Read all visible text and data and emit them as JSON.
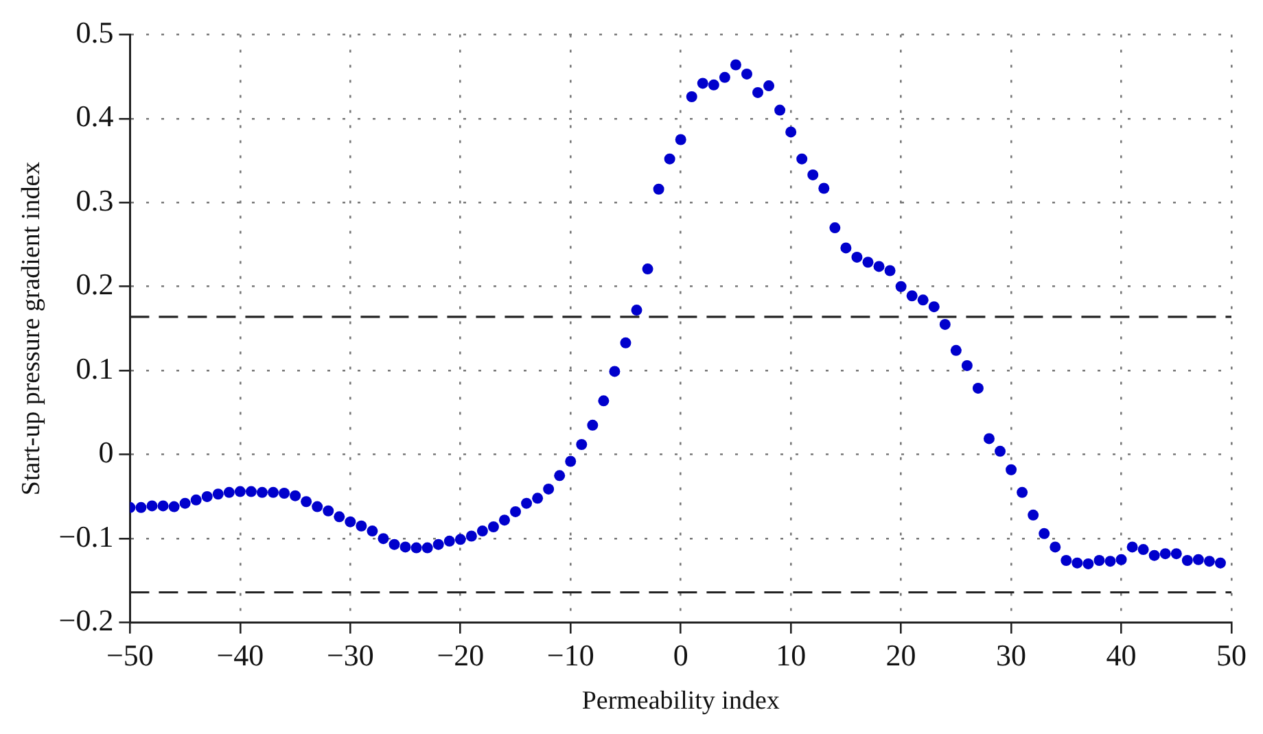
{
  "chart_data": {
    "type": "scatter",
    "xlabel": "Permeability index",
    "ylabel": "Start-up pressure gradient index",
    "x": [
      -50,
      -49,
      -48,
      -47,
      -46,
      -45,
      -44,
      -43,
      -42,
      -41,
      -40,
      -39,
      -38,
      -37,
      -36,
      -35,
      -34,
      -33,
      -32,
      -31,
      -30,
      -29,
      -28,
      -27,
      -26,
      -25,
      -24,
      -23,
      -22,
      -21,
      -20,
      -19,
      -18,
      -17,
      -16,
      -15,
      -14,
      -13,
      -12,
      -11,
      -10,
      -9,
      -8,
      -7,
      -6,
      -5,
      -4,
      -3,
      -2,
      -1,
      0,
      1,
      2,
      3,
      4,
      5,
      6,
      7,
      8,
      9,
      10,
      11,
      12,
      13,
      14,
      15,
      16,
      17,
      18,
      19,
      20,
      21,
      22,
      23,
      24,
      25,
      26,
      27,
      28,
      29,
      30,
      31,
      32,
      33,
      34,
      35,
      36,
      37,
      38,
      39,
      40,
      41,
      42,
      43,
      44,
      45,
      46,
      47,
      48,
      49
    ],
    "series": [
      {
        "color": "#0000cc",
        "values": [
          -0.063,
          -0.063,
          -0.061,
          -0.061,
          -0.062,
          -0.058,
          -0.054,
          -0.05,
          -0.047,
          -0.045,
          -0.044,
          -0.044,
          -0.045,
          -0.045,
          -0.046,
          -0.049,
          -0.056,
          -0.062,
          -0.067,
          -0.074,
          -0.08,
          -0.085,
          -0.091,
          -0.1,
          -0.107,
          -0.11,
          -0.111,
          -0.111,
          -0.107,
          -0.103,
          -0.101,
          -0.097,
          -0.091,
          -0.086,
          -0.078,
          -0.068,
          -0.058,
          -0.052,
          -0.041,
          -0.025,
          -0.008,
          0.012,
          0.035,
          0.064,
          0.099,
          0.133,
          0.172,
          0.221,
          0.316,
          0.352,
          0.375,
          0.426,
          0.442,
          0.44,
          0.449,
          0.464,
          0.453,
          0.431,
          0.439,
          0.41,
          0.384,
          0.352,
          0.333,
          0.317,
          0.27,
          0.246,
          0.235,
          0.229,
          0.224,
          0.219,
          0.2,
          0.189,
          0.184,
          0.176,
          0.155,
          0.124,
          0.106,
          0.079,
          0.019,
          0.004,
          -0.018,
          -0.045,
          -0.072,
          -0.094,
          -0.11,
          -0.126,
          -0.129,
          -0.13,
          -0.126,
          -0.127,
          -0.125,
          -0.11,
          -0.113,
          -0.12,
          -0.118,
          -0.118,
          -0.126,
          -0.125,
          -0.127,
          -0.129
        ]
      }
    ],
    "xlim": [
      -50,
      50
    ],
    "xticks": [
      -50,
      -40,
      -30,
      -20,
      -10,
      0,
      10,
      20,
      30,
      40,
      50
    ],
    "ylim": [
      -0.2,
      0.5
    ],
    "yticks": [
      -0.2,
      -0.1,
      0,
      0.1,
      0.2,
      0.3,
      0.4,
      0.5
    ],
    "ref_lines": [
      {
        "axis": "y",
        "value": 0.164,
        "color": "#222222",
        "line_style": "dashed"
      },
      {
        "axis": "y",
        "value": -0.164,
        "color": "#222222",
        "line_style": "dashed"
      }
    ],
    "grid": true,
    "legend": false,
    "marker": "circle"
  }
}
